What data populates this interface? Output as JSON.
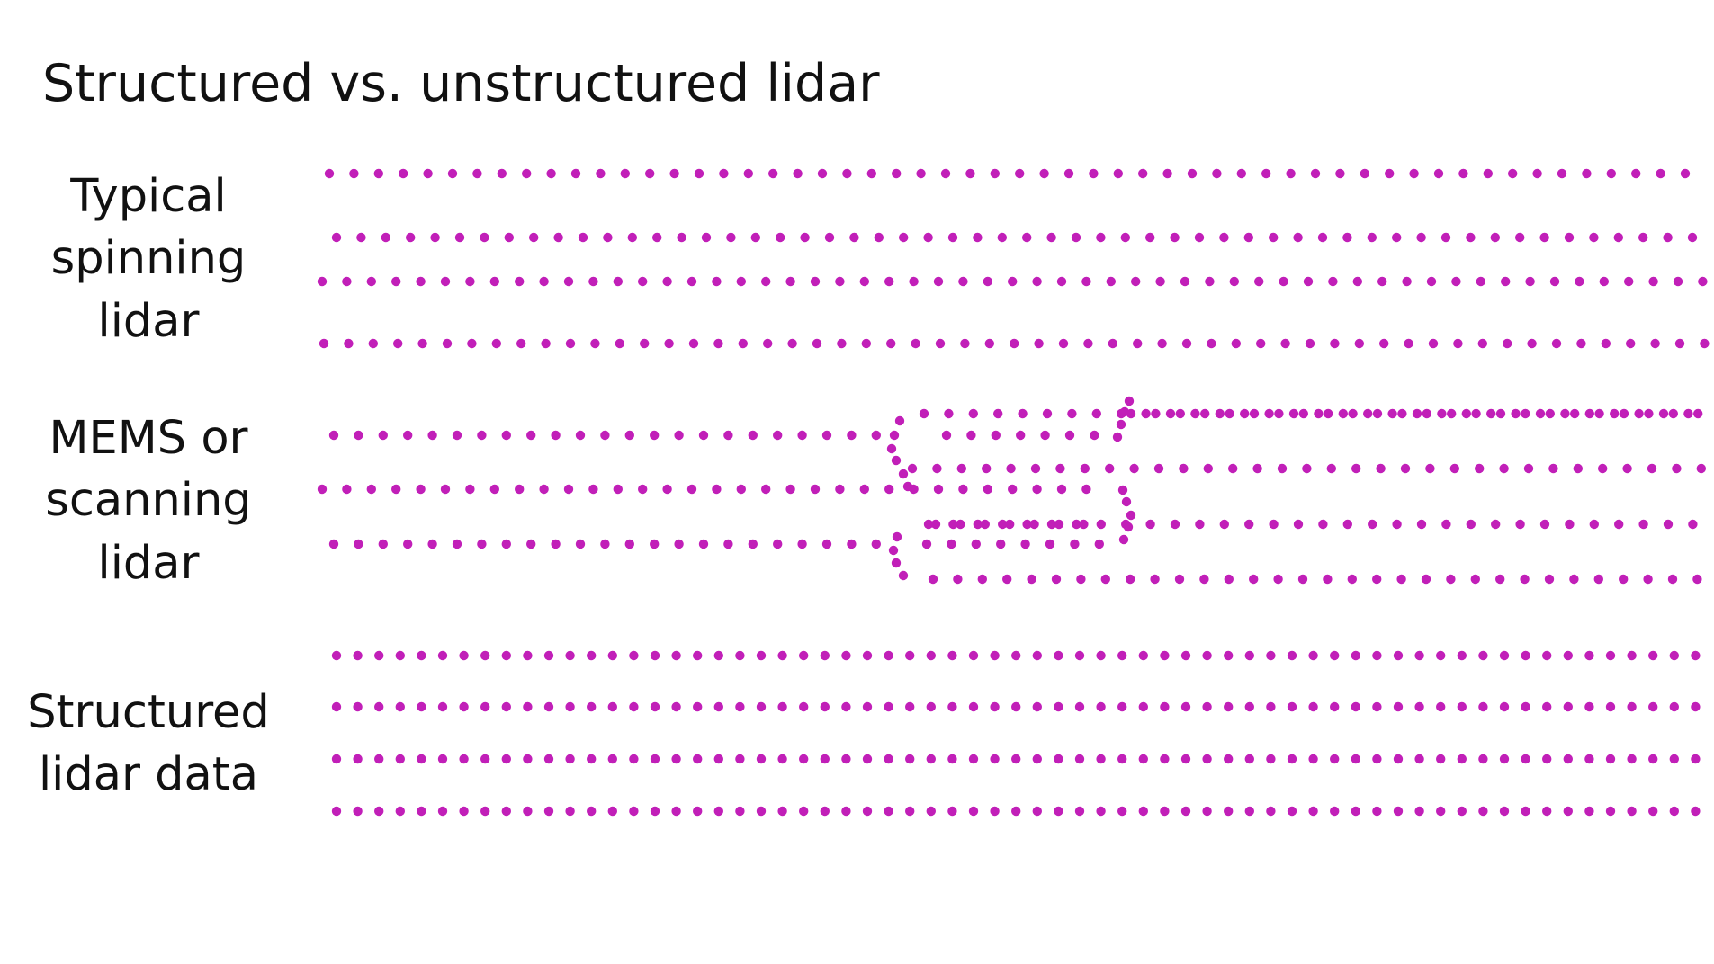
{
  "title": "Structured vs. unstructured lidar",
  "dot_color": "#C11FB8",
  "rows": [
    {
      "id": "spinning",
      "label_lines": [
        "Typical",
        "spinning",
        "lidar"
      ],
      "pattern": "offset-lines"
    },
    {
      "id": "mems",
      "label_lines": [
        "MEMS or",
        "scanning",
        "lidar"
      ],
      "pattern": "irregular-scan"
    },
    {
      "id": "structured",
      "label_lines": [
        "Structured",
        "lidar data"
      ],
      "pattern": "regular-grid"
    }
  ]
}
